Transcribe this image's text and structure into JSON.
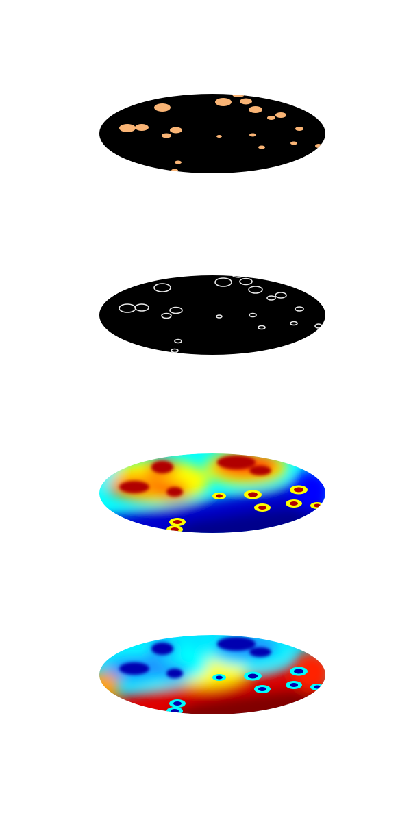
{
  "figure": {
    "panels": [
      {
        "id": "binary-mask",
        "style": "filled-blobs"
      },
      {
        "id": "contour-edges",
        "style": "outlines"
      },
      {
        "id": "distance-map",
        "style": "jet"
      },
      {
        "id": "inverted-distance-map",
        "style": "jet-inverted"
      }
    ]
  },
  "colors": {
    "background": "#ffffff",
    "disk": "#000000",
    "blob": "#f9b475",
    "outline": "#e8e8e8",
    "jet_dark_red": "#800000",
    "jet_red": "#ff0000",
    "jet_yellow": "#ffff00",
    "jet_cyan": "#00ffff",
    "jet_blue": "#0000ff",
    "jet_dark_blue": "#00008b"
  }
}
